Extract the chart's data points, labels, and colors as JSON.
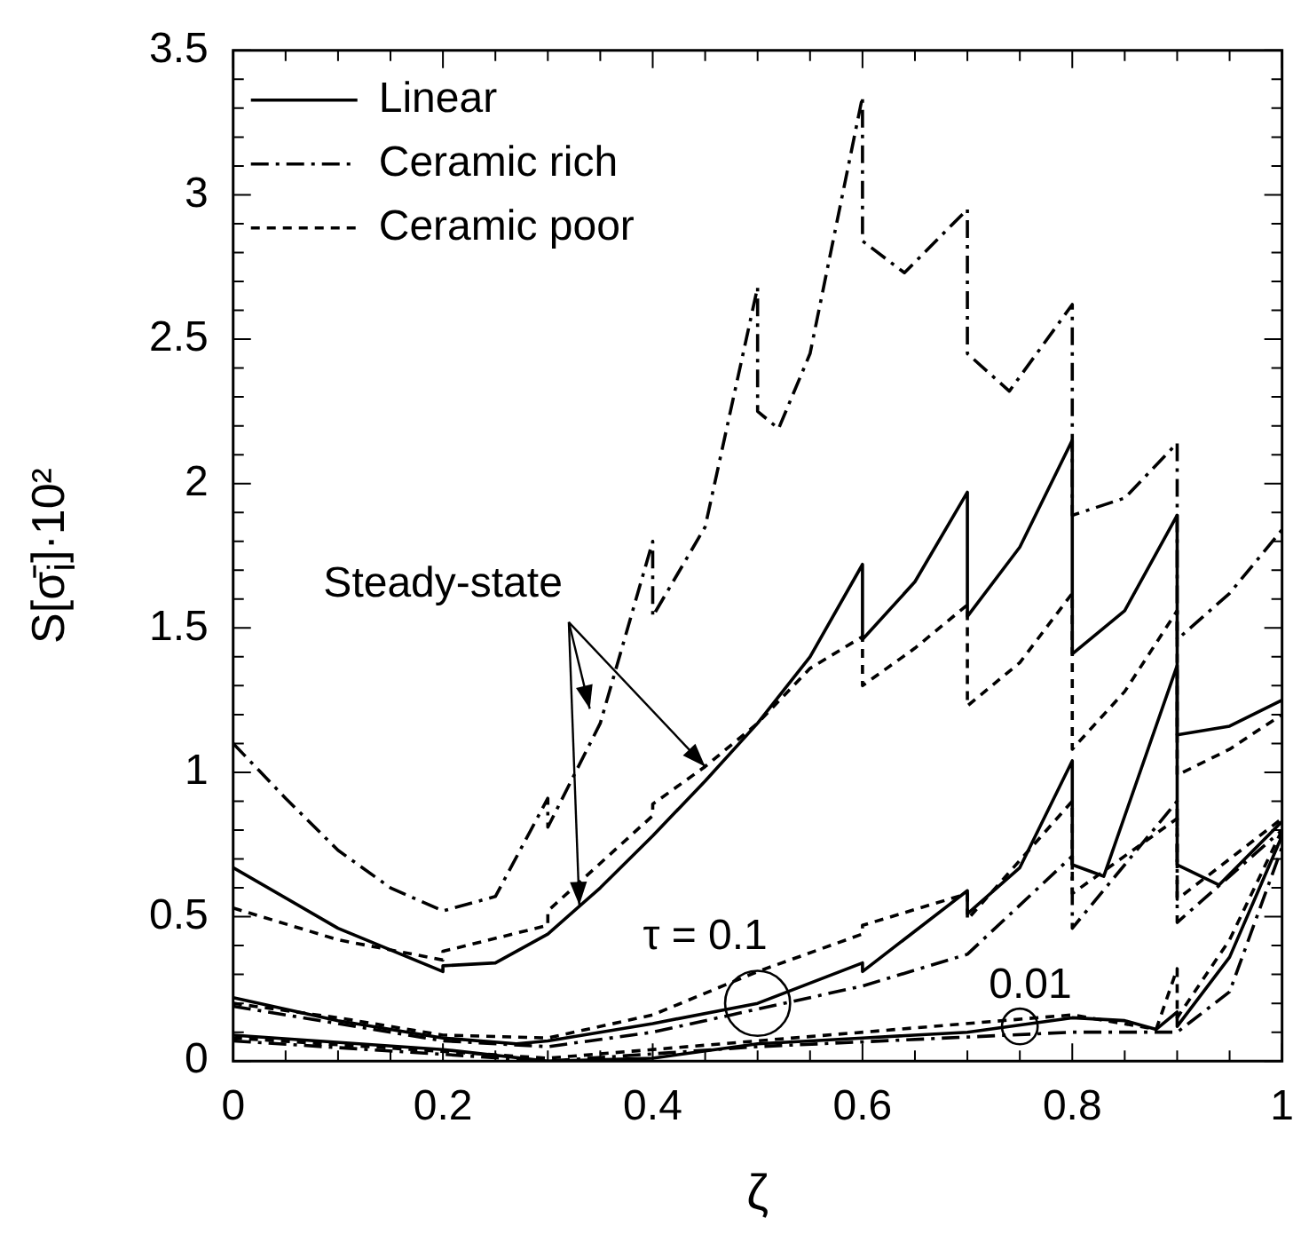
{
  "chart_data": {
    "type": "line",
    "xlabel": "ζ",
    "ylabel": "S[σ̄$_{i}$]·10²",
    "xlim": [
      0,
      1
    ],
    "ylim": [
      0,
      3.5
    ],
    "xticks": [
      0,
      {
        "value": 0.05,
        "label": null
      },
      {
        "value": 0.1,
        "label": null
      },
      {
        "value": 0.15,
        "label": null
      },
      0.2,
      {
        "value": 0.25,
        "label": null
      },
      {
        "value": 0.3,
        "label": null
      },
      {
        "value": 0.35,
        "label": null
      },
      0.4,
      {
        "value": 0.45,
        "label": null
      },
      {
        "value": 0.5,
        "label": null
      },
      {
        "value": 0.55,
        "label": null
      },
      0.6,
      {
        "value": 0.65,
        "label": null
      },
      {
        "value": 0.7,
        "label": null
      },
      {
        "value": 0.75,
        "label": null
      },
      0.8,
      {
        "value": 0.85,
        "label": null
      },
      {
        "value": 0.9,
        "label": null
      },
      {
        "value": 0.95,
        "label": null
      },
      1
    ],
    "yticks": [
      0,
      {
        "value": 0.1,
        "label": null
      },
      {
        "value": 0.2,
        "label": null
      },
      {
        "value": 0.3,
        "label": null
      },
      {
        "value": 0.4,
        "label": null
      },
      0.5,
      {
        "value": 0.6,
        "label": null
      },
      {
        "value": 0.7,
        "label": null
      },
      {
        "value": 0.8,
        "label": null
      },
      {
        "value": 0.9,
        "label": null
      },
      1,
      {
        "value": 1.1,
        "label": null
      },
      {
        "value": 1.2,
        "label": null
      },
      {
        "value": 1.3,
        "label": null
      },
      {
        "value": 1.4,
        "label": null
      },
      1.5,
      {
        "value": 1.6,
        "label": null
      },
      {
        "value": 1.7,
        "label": null
      },
      {
        "value": 1.8,
        "label": null
      },
      {
        "value": 1.9,
        "label": null
      },
      2,
      {
        "value": 2.1,
        "label": null
      },
      {
        "value": 2.2,
        "label": null
      },
      {
        "value": 2.3,
        "label": null
      },
      {
        "value": 2.4,
        "label": null
      },
      2.5,
      {
        "value": 2.6,
        "label": null
      },
      {
        "value": 2.7,
        "label": null
      },
      {
        "value": 2.8,
        "label": null
      },
      {
        "value": 2.9,
        "label": null
      },
      3,
      {
        "value": 3.1,
        "label": null
      },
      {
        "value": 3.2,
        "label": null
      },
      {
        "value": 3.3,
        "label": null
      },
      {
        "value": 3.4,
        "label": null
      },
      3.5
    ],
    "grid": false,
    "legend": "top left",
    "marker": "none",
    "annotations": [
      {
        "text": "Steady-state",
        "x": 0.45,
        "y": 1.02
      },
      "τ = 0.1",
      "0.01"
    ],
    "series": [
      {
        "name": "Linear",
        "color": "#000000",
        "line_style": "solid",
        "x": [
          0,
          0.1,
          0.2,
          0.2,
          0.25,
          0.3,
          0.35,
          0.4,
          0.45,
          0.5,
          0.55,
          0.6,
          0.6,
          0.65,
          0.7,
          0.7,
          0.75,
          0.8,
          0.8,
          0.85,
          0.9,
          0.9,
          0.95,
          1
        ],
        "values": [
          0.67,
          0.46,
          0.31,
          0.33,
          0.34,
          0.44,
          0.6,
          0.78,
          0.97,
          1.17,
          1.4,
          1.72,
          1.46,
          1.66,
          1.97,
          1.54,
          1.78,
          2.15,
          1.41,
          1.56,
          1.89,
          1.13,
          1.16,
          1.25
        ]
      },
      {
        "name": "Ceramic rich",
        "color": "#000000",
        "line_style": "dashdot",
        "x": [
          0,
          0.05,
          0.1,
          0.15,
          0.2,
          0.25,
          0.3,
          0.3,
          0.35,
          0.4,
          0.4,
          0.45,
          0.5,
          0.5,
          0.52,
          0.55,
          0.6,
          0.6,
          0.64,
          0.7,
          0.7,
          0.74,
          0.8,
          0.8,
          0.85,
          0.9,
          0.9,
          0.95,
          1
        ],
        "values": [
          1.1,
          0.91,
          0.73,
          0.6,
          0.52,
          0.57,
          0.91,
          0.81,
          1.17,
          1.8,
          1.54,
          1.85,
          2.68,
          2.25,
          2.19,
          2.45,
          3.34,
          2.84,
          2.73,
          2.95,
          2.45,
          2.32,
          2.62,
          1.89,
          1.95,
          2.14,
          1.46,
          1.62,
          1.84
        ]
      },
      {
        "name": "Ceramic poor",
        "color": "#000000",
        "line_style": "dashed",
        "x": [
          0,
          0.1,
          0.2,
          0.2,
          0.3,
          0.3,
          0.4,
          0.4,
          0.45,
          0.5,
          0.55,
          0.6,
          0.6,
          0.65,
          0.7,
          0.7,
          0.75,
          0.8,
          0.8,
          0.85,
          0.9,
          0.9,
          0.95,
          1
        ],
        "values": [
          0.53,
          0.42,
          0.35,
          0.38,
          0.47,
          0.52,
          0.85,
          0.89,
          1.02,
          1.17,
          1.36,
          1.47,
          1.3,
          1.43,
          1.58,
          1.23,
          1.38,
          1.62,
          1.08,
          1.28,
          1.56,
          0.99,
          1.08,
          1.2
        ]
      },
      {
        "color": "#000000",
        "line_style": "solid",
        "x": [
          0,
          0.1,
          0.2,
          0.27,
          0.3,
          0.4,
          0.5,
          0.6,
          0.6,
          0.7,
          0.7,
          0.75,
          0.8,
          0.8,
          0.83,
          0.9,
          0.9,
          0.94,
          1
        ],
        "values": [
          0.22,
          0.14,
          0.08,
          0.06,
          0.07,
          0.13,
          0.2,
          0.34,
          0.31,
          0.59,
          0.51,
          0.67,
          1.04,
          0.68,
          0.64,
          1.37,
          0.68,
          0.61,
          0.83
        ]
      },
      {
        "color": "#000000",
        "line_style": "dashdot",
        "x": [
          0,
          0.1,
          0.2,
          0.3,
          0.4,
          0.5,
          0.6,
          0.7,
          0.8,
          0.8,
          0.9,
          0.9,
          1
        ],
        "values": [
          0.19,
          0.13,
          0.07,
          0.05,
          0.1,
          0.18,
          0.26,
          0.37,
          0.71,
          0.46,
          0.9,
          0.48,
          0.8
        ]
      },
      {
        "color": "#000000",
        "line_style": "dashed",
        "x": [
          0,
          0.1,
          0.2,
          0.3,
          0.4,
          0.5,
          0.6,
          0.6,
          0.7,
          0.7,
          0.8,
          0.8,
          0.9,
          0.9,
          1
        ],
        "values": [
          0.2,
          0.15,
          0.09,
          0.08,
          0.16,
          0.31,
          0.44,
          0.47,
          0.58,
          0.49,
          0.9,
          0.58,
          0.84,
          0.56,
          0.84
        ]
      },
      {
        "color": "#000000",
        "line_style": "solid",
        "x": [
          0,
          0.2,
          0.3,
          0.4,
          0.5,
          0.6,
          0.7,
          0.8,
          0.85,
          0.88,
          0.9,
          0.9,
          0.95,
          1
        ],
        "values": [
          0.09,
          0.04,
          0,
          0.01,
          0.06,
          0.08,
          0.1,
          0.15,
          0.14,
          0.11,
          0.17,
          0.12,
          0.36,
          0.78
        ]
      },
      {
        "color": "#000000",
        "line_style": "dashdot",
        "x": [
          0,
          0.3,
          0.5,
          0.8,
          0.9,
          0.95,
          1
        ],
        "values": [
          0.07,
          0,
          0.05,
          0.1,
          0.1,
          0.24,
          0.74
        ]
      },
      {
        "color": "#000000",
        "line_style": "dashed",
        "x": [
          0,
          0.3,
          0.5,
          0.8,
          0.88,
          0.9,
          0.9,
          0.95,
          1
        ],
        "values": [
          0.08,
          0.01,
          0.07,
          0.16,
          0.11,
          0.32,
          0.15,
          0.42,
          0.8
        ]
      }
    ]
  }
}
